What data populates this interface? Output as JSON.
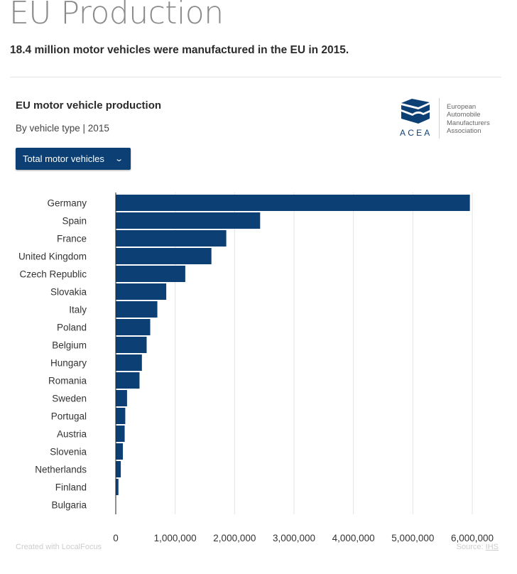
{
  "header": {
    "title": "EU Production",
    "lede": "18.4 million motor vehicles were manufactured in the EU in 2015."
  },
  "card": {
    "title": "EU motor vehicle production",
    "subtitle": "By vehicle type | 2015",
    "dropdown": {
      "selected": "Total motor vehicles",
      "icon": "chevron-down-icon"
    }
  },
  "logo": {
    "abbreviation": "ACEA",
    "name_lines": [
      "European",
      "Automobile",
      "Manufacturers",
      "Association"
    ],
    "color": "#0c3f73"
  },
  "chart_data": {
    "type": "bar",
    "orientation": "horizontal",
    "title": "EU motor vehicle production",
    "subtitle": "By vehicle type | 2015",
    "categories": [
      "Germany",
      "Spain",
      "France",
      "United Kingdom",
      "Czech Republic",
      "Slovakia",
      "Italy",
      "Poland",
      "Belgium",
      "Hungary",
      "Romania",
      "Sweden",
      "Portugal",
      "Austria",
      "Slovenia",
      "Netherlands",
      "Finland",
      "Bulgaria"
    ],
    "values": [
      5960000,
      2430000,
      1860000,
      1610000,
      1170000,
      850000,
      700000,
      580000,
      520000,
      440000,
      400000,
      190000,
      160000,
      150000,
      120000,
      85000,
      45000,
      0
    ],
    "xlim": [
      0,
      6000000
    ],
    "xticks": [
      "0",
      "1,000,000",
      "2,000,000",
      "3,000,000",
      "4,000,000",
      "5,000,000",
      "6,000,000"
    ],
    "xlabel": "",
    "ylabel": "",
    "grid": true,
    "bar_color": "#0c3f73",
    "grid_color": "#e3e3e3"
  },
  "footer": {
    "credit": "Created with LocalFocus",
    "source_label": "Source:",
    "source_name": "IHS"
  }
}
